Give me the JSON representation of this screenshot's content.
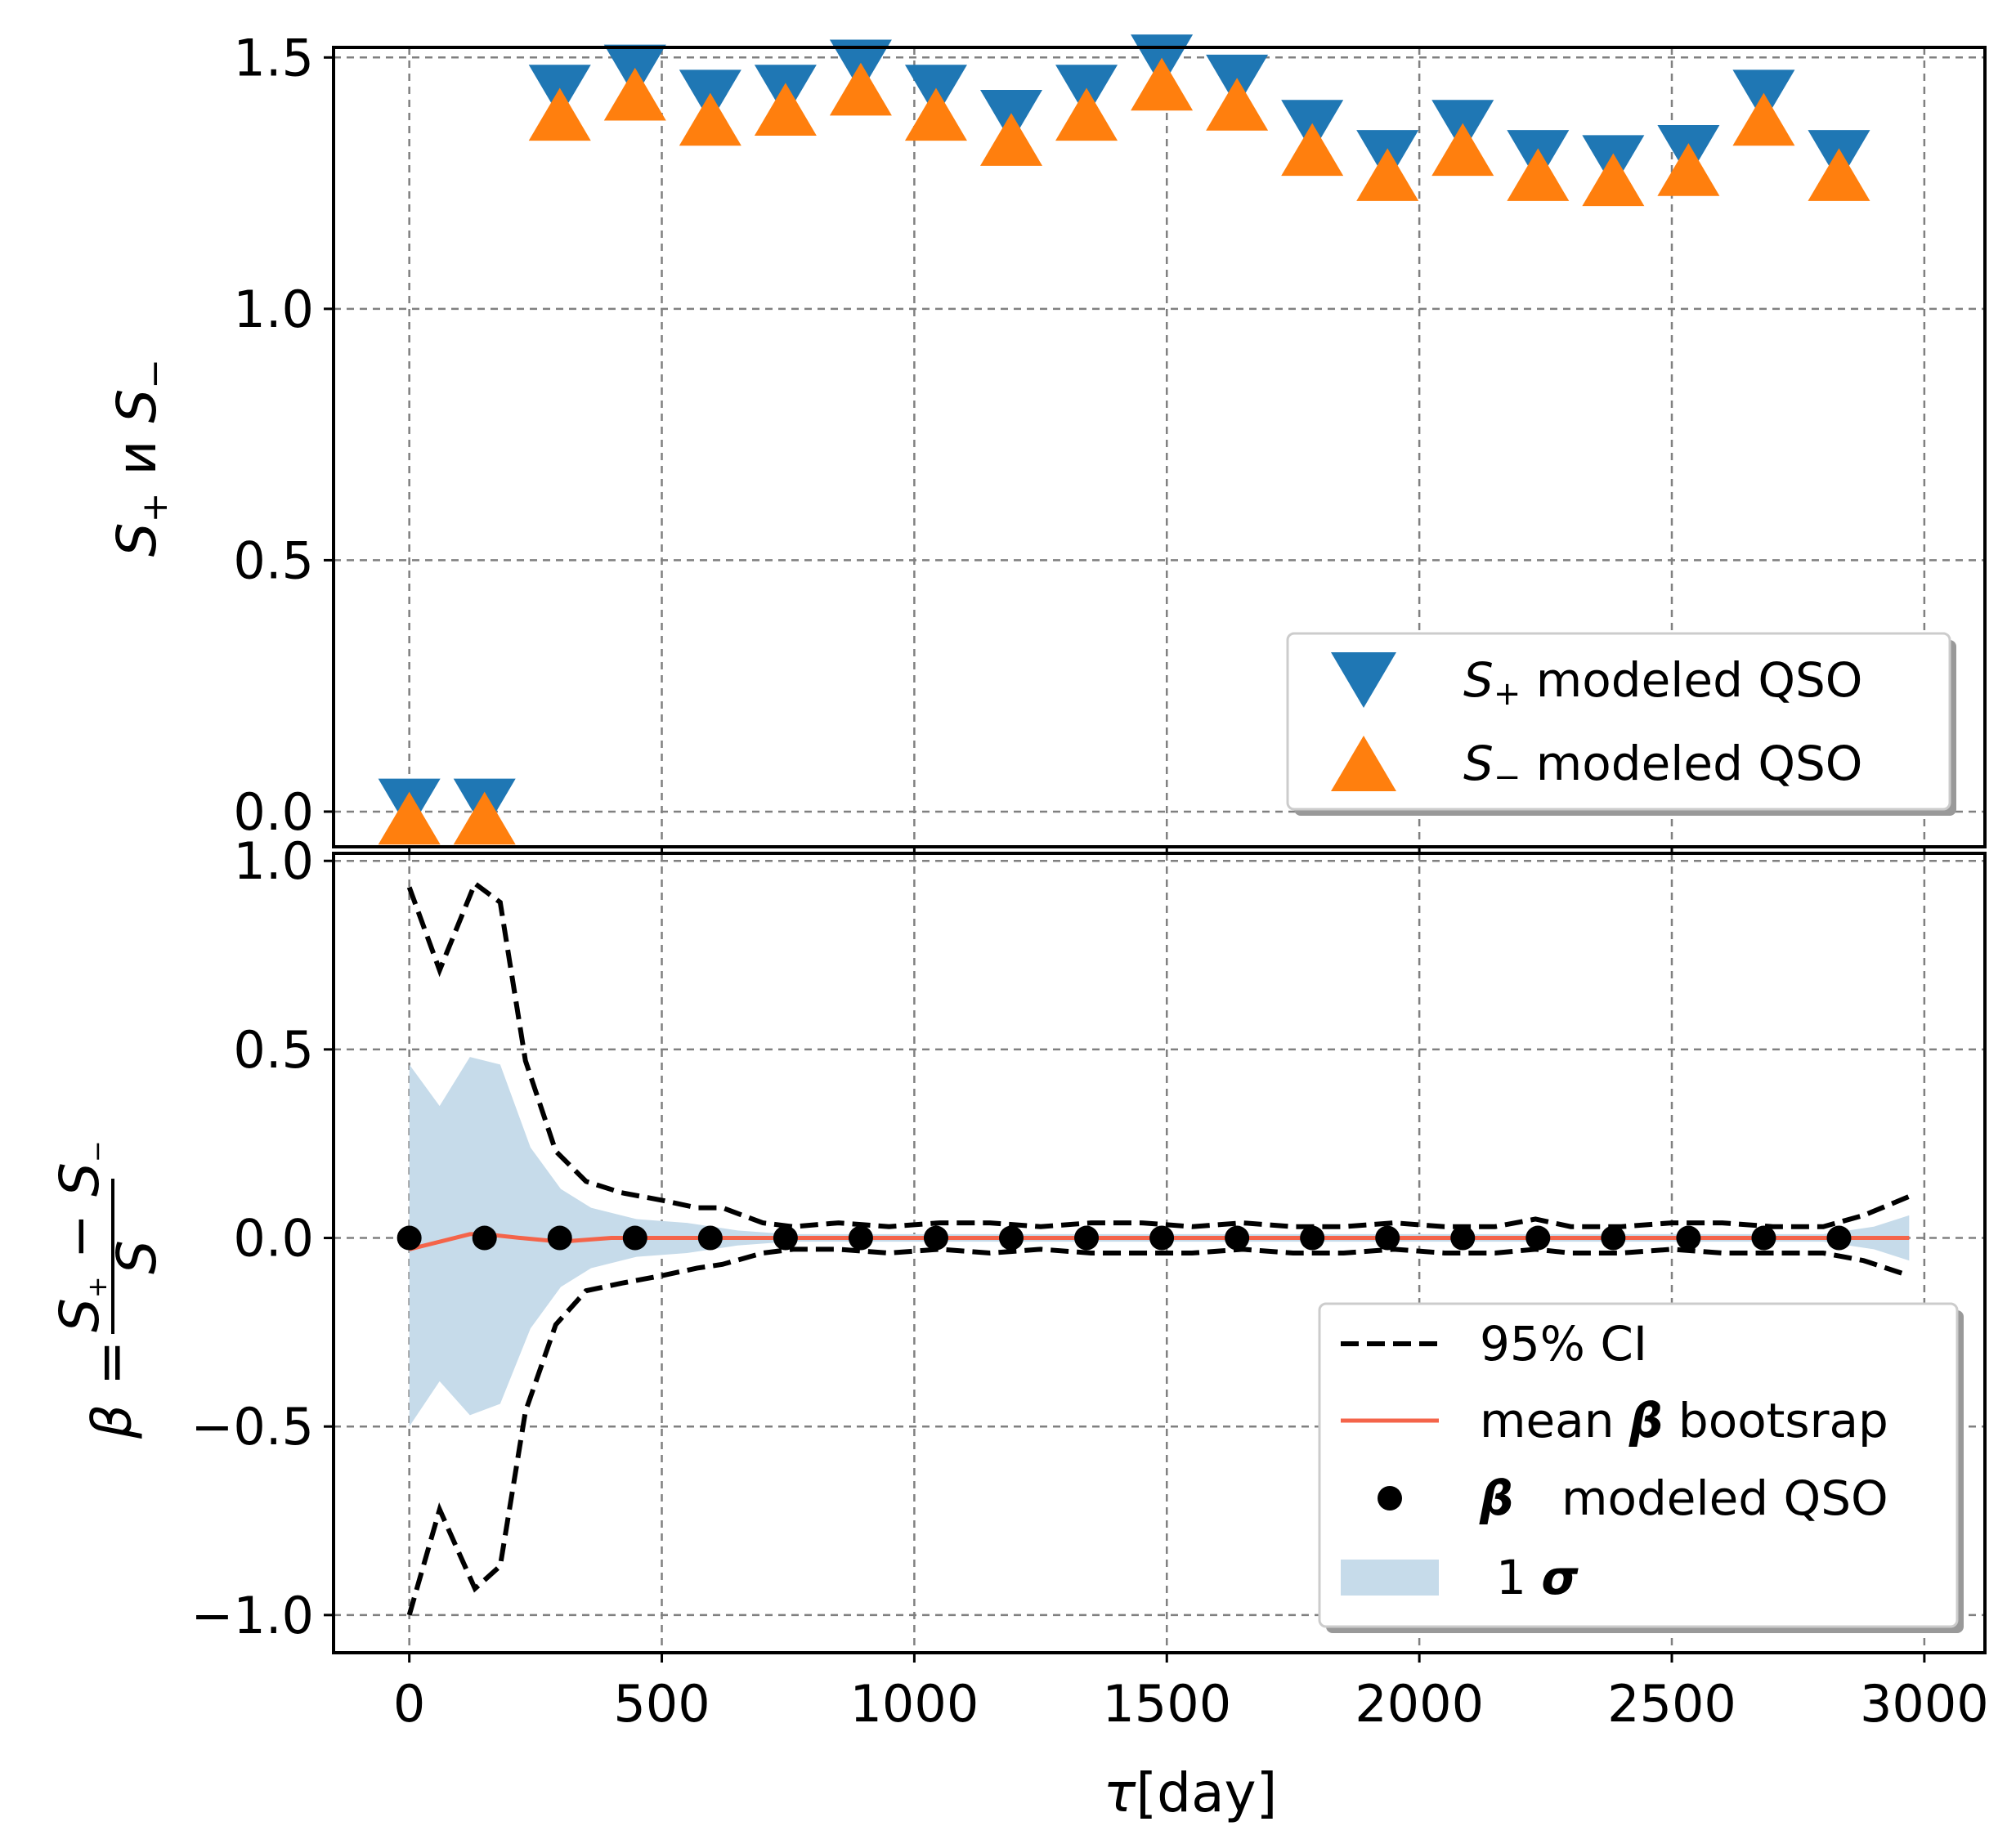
{
  "chart_data": [
    {
      "type": "scatter",
      "panel": "top",
      "ylabel": "S₊ и S₋",
      "xlabel": "",
      "xlim": [
        -150,
        3120
      ],
      "ylim": [
        -0.07,
        1.52
      ],
      "xticks": [
        0,
        500,
        1000,
        1500,
        2000,
        2500,
        3000
      ],
      "yticks": [
        0.0,
        0.5,
        1.0,
        1.5
      ],
      "ytick_labels": [
        "0.0",
        "0.5",
        "1.0",
        "1.5"
      ],
      "grid": true,
      "legend_position": "lower-right",
      "x": [
        0,
        149,
        298,
        447,
        596,
        745,
        894,
        1043,
        1192,
        1341,
        1490,
        1639,
        1788,
        1937,
        2086,
        2235,
        2384,
        2533,
        2682,
        2831
      ],
      "series": [
        {
          "name": "S₊ modeled QSO",
          "legend_sub": "+",
          "legend_text": "modeled QSO",
          "marker": "triangle-down",
          "color": "#1f77b4",
          "values": [
            0.0,
            0.0,
            1.42,
            1.46,
            1.41,
            1.42,
            1.47,
            1.42,
            1.37,
            1.42,
            1.48,
            1.44,
            1.35,
            1.29,
            1.35,
            1.29,
            1.28,
            1.3,
            1.41,
            1.29
          ]
        },
        {
          "name": "S₋ modeled QSO",
          "legend_sub": "−",
          "legend_text": "modeled QSO",
          "marker": "triangle-up",
          "color": "#ff7f0e",
          "values": [
            0.0,
            0.0,
            1.4,
            1.44,
            1.39,
            1.41,
            1.45,
            1.4,
            1.35,
            1.4,
            1.46,
            1.42,
            1.33,
            1.28,
            1.33,
            1.28,
            1.27,
            1.29,
            1.39,
            1.28
          ]
        }
      ]
    },
    {
      "type": "line",
      "panel": "bottom",
      "ylabel": "β = (S₊ − S₋) / S",
      "xlabel": "τ[day]",
      "xlim": [
        -150,
        3120
      ],
      "ylim": [
        -1.1,
        1.02
      ],
      "xticks": [
        0,
        500,
        1000,
        1500,
        2000,
        2500,
        3000
      ],
      "xtick_labels": [
        "0",
        "500",
        "1000",
        "1500",
        "2000",
        "2500",
        "3000"
      ],
      "yticks": [
        -1.0,
        -0.5,
        0.0,
        0.5,
        1.0
      ],
      "ytick_labels": [
        "−1.0",
        "−0.5",
        "0.0",
        "0.5",
        "1.0"
      ],
      "grid": true,
      "legend_position": "lower-right",
      "legend": [
        {
          "key": "ci",
          "symbol": "β",
          "label": "95% CI"
        },
        {
          "key": "mean",
          "symbol": "β",
          "label": "mean β bootsrap",
          "prefix": "mean",
          "suffix": "bootsrap"
        },
        {
          "key": "points",
          "symbol": "β",
          "label": "modeled QSO"
        },
        {
          "key": "band",
          "symbol": "σ",
          "label": "1 σ",
          "prefix": "1"
        }
      ],
      "ci_x": [
        0,
        60,
        130,
        180,
        230,
        290,
        350,
        420,
        500,
        570,
        620,
        700,
        760,
        850,
        950,
        1050,
        1150,
        1250,
        1350,
        1450,
        1550,
        1650,
        1750,
        1850,
        1950,
        2050,
        2150,
        2230,
        2300,
        2400,
        2500,
        2600,
        2700,
        2800,
        2880,
        2970
      ],
      "ci_upper": [
        0.93,
        0.71,
        0.94,
        0.89,
        0.47,
        0.23,
        0.15,
        0.12,
        0.1,
        0.08,
        0.08,
        0.04,
        0.03,
        0.04,
        0.03,
        0.04,
        0.04,
        0.03,
        0.04,
        0.04,
        0.03,
        0.04,
        0.03,
        0.03,
        0.04,
        0.03,
        0.03,
        0.05,
        0.03,
        0.03,
        0.04,
        0.04,
        0.03,
        0.03,
        0.06,
        0.11
      ],
      "ci_lower": [
        -1.0,
        -0.72,
        -0.93,
        -0.87,
        -0.46,
        -0.23,
        -0.14,
        -0.12,
        -0.1,
        -0.08,
        -0.07,
        -0.04,
        -0.03,
        -0.03,
        -0.04,
        -0.03,
        -0.04,
        -0.03,
        -0.04,
        -0.04,
        -0.04,
        -0.03,
        -0.04,
        -0.04,
        -0.03,
        -0.04,
        -0.04,
        -0.03,
        -0.04,
        -0.04,
        -0.03,
        -0.04,
        -0.04,
        -0.04,
        -0.06,
        -0.1
      ],
      "band_x": [
        0,
        60,
        120,
        180,
        240,
        300,
        360,
        450,
        550,
        650,
        750,
        850,
        1000,
        1500,
        2000,
        2500,
        2800,
        2900,
        2970
      ],
      "band_upper": [
        0.46,
        0.35,
        0.48,
        0.46,
        0.24,
        0.13,
        0.08,
        0.05,
        0.04,
        0.02,
        0.01,
        0.01,
        0.01,
        0.01,
        0.01,
        0.01,
        0.01,
        0.03,
        0.06
      ],
      "band_lower": [
        -0.5,
        -0.38,
        -0.47,
        -0.44,
        -0.24,
        -0.13,
        -0.08,
        -0.05,
        -0.04,
        -0.02,
        -0.01,
        -0.01,
        -0.01,
        -0.01,
        -0.01,
        -0.01,
        -0.01,
        -0.03,
        -0.06
      ],
      "mean_x": [
        0,
        60,
        120,
        150,
        220,
        300,
        400,
        600,
        800,
        1000,
        1500,
        2000,
        2500,
        2800,
        2970
      ],
      "mean_values": [
        -0.03,
        -0.01,
        0.01,
        0.01,
        0.0,
        -0.01,
        0.0,
        0.0,
        0.0,
        0.0,
        0.0,
        0.0,
        0.0,
        0.0,
        0.0
      ],
      "points_x": [
        0,
        149,
        298,
        447,
        596,
        745,
        894,
        1043,
        1192,
        1341,
        1490,
        1639,
        1788,
        1937,
        2086,
        2235,
        2384,
        2533,
        2682,
        2831
      ],
      "points_values": [
        0.0,
        0.0,
        0.0,
        0.0,
        0.0,
        0.0,
        0.0,
        0.0,
        0.0,
        0.0,
        0.0,
        0.0,
        0.0,
        0.0,
        0.0,
        0.0,
        0.0,
        0.0,
        0.0,
        0.0
      ]
    }
  ],
  "colors": {
    "blue": "#1f77b4",
    "orange": "#ff7f0e",
    "mean": "#f4644a",
    "band": "#c6dbea",
    "ci": "#000000",
    "points": "#000000"
  },
  "labels": {
    "top_ylabel_s": "S",
    "top_ylabel_sub_plus": "+",
    "top_ylabel_and": "и",
    "top_ylabel_sub_minus": "−",
    "bottom_ylabel_beta": "β",
    "bottom_ylabel_eq": "=",
    "frac_num_s": "S",
    "frac_num_plus": "+",
    "frac_num_minus_sign": "−",
    "frac_num_minus": "−",
    "frac_den": "S",
    "xlabel_tau": "τ",
    "xlabel_unit": "[day]"
  }
}
